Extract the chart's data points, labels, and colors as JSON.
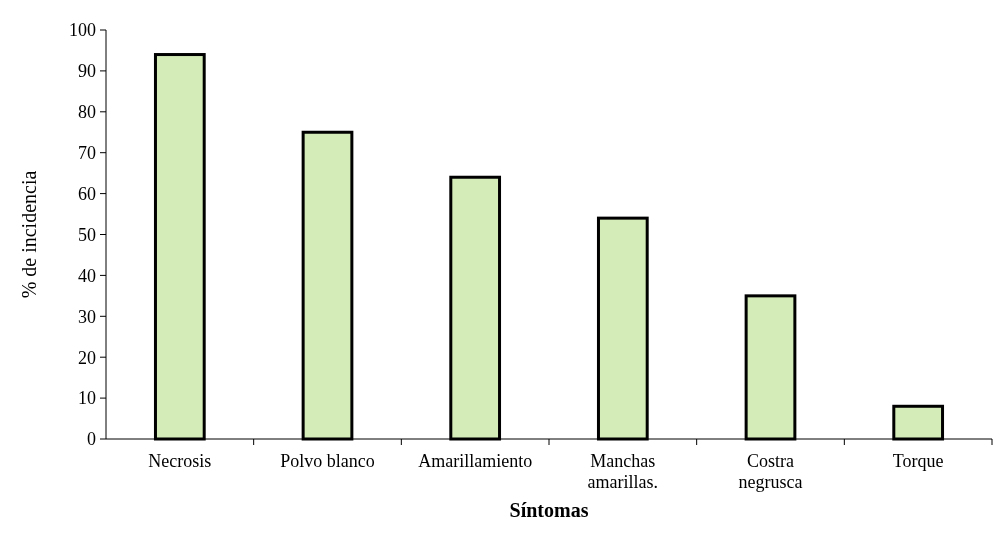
{
  "chart_data": {
    "type": "bar",
    "xlabel": "Síntomas",
    "ylabel": "% de incidencia",
    "categories": [
      "Necrosis",
      "Polvo blanco",
      "Amarillamiento",
      "Manchas amarillas.",
      "Costra negrusca",
      "Torque"
    ],
    "values": [
      94,
      75,
      64,
      54,
      35,
      8
    ],
    "color": "#d4ecb8",
    "ylim": [
      0,
      100
    ],
    "yticks": [
      0,
      10,
      20,
      30,
      40,
      50,
      60,
      70,
      80,
      90,
      100
    ],
    "grid": false
  }
}
